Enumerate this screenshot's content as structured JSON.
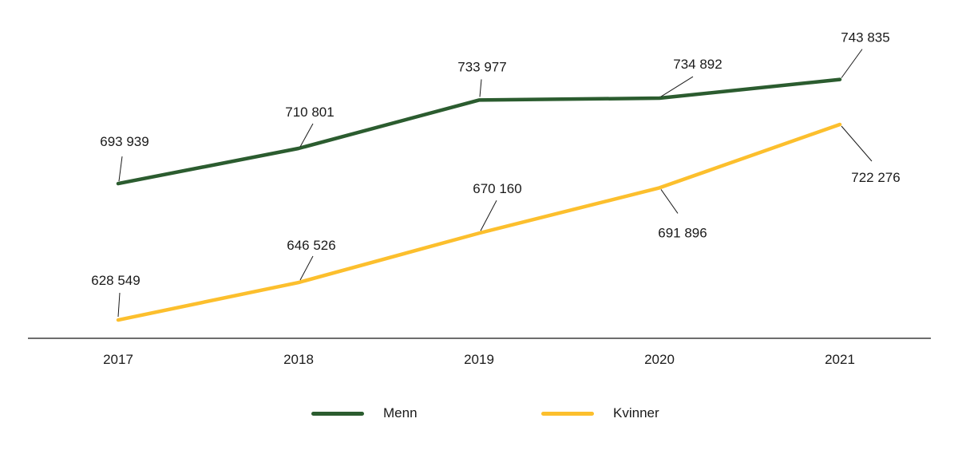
{
  "chart_data": {
    "type": "line",
    "title": "",
    "xlabel": "",
    "ylabel": "",
    "categories": [
      "2017",
      "2018",
      "2019",
      "2020",
      "2021"
    ],
    "series": [
      {
        "name": "Menn",
        "color": "#2b5c2f",
        "values": [
          693939,
          710801,
          733977,
          734892,
          743835
        ],
        "labels": [
          "693 939",
          "710 801",
          "733 977",
          "734 892",
          "743 835"
        ]
      },
      {
        "name": "Kvinner",
        "color": "#fcbf2d",
        "values": [
          628549,
          646526,
          670160,
          691896,
          722276
        ],
        "labels": [
          "628 549",
          "646 526",
          "670 160",
          "691 896",
          "722 276"
        ]
      }
    ],
    "ylim": [
      619760,
      781950
    ],
    "grid": false,
    "legend_position": "bottom",
    "axis_color": "#3d3d3d",
    "label_color": "#1a1a1a",
    "leader_line_color": "#1a1a1a"
  },
  "legend": {
    "items": [
      {
        "label": "Menn"
      },
      {
        "label": "Kvinner"
      }
    ]
  }
}
